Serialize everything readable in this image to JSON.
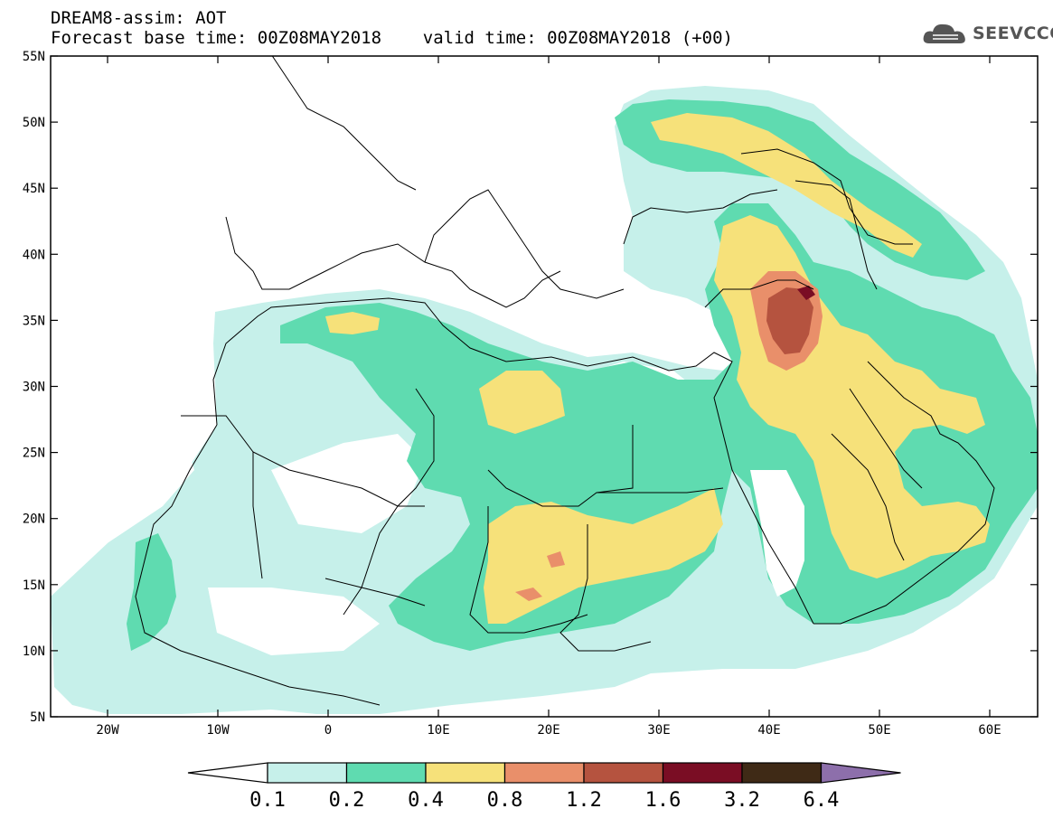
{
  "header": {
    "title_line1": "DREAM8-assim: AOT",
    "title_line2": "Forecast base time: 00Z08MAY2018    valid time: 00Z08MAY2018 (+00)"
  },
  "logo": {
    "text": "SEEVCCC",
    "icon": "cloud-icon"
  },
  "map": {
    "lat_labels": [
      "55N",
      "50N",
      "45N",
      "40N",
      "35N",
      "30N",
      "25N",
      "20N",
      "15N",
      "10N",
      "5N"
    ],
    "lon_labels": [
      "20W",
      "10W",
      "0",
      "10E",
      "20E",
      "30E",
      "40E",
      "50E",
      "60E"
    ]
  },
  "colorbar": {
    "labels": [
      "0.1",
      "0.2",
      "0.4",
      "0.8",
      "1.2",
      "1.6",
      "3.2",
      "6.4"
    ],
    "colors": [
      "#c6f0ea",
      "#5fdbb0",
      "#f6e17a",
      "#e98f6a",
      "#b5533f",
      "#7a0d24",
      "#3f2a16",
      "#8d6fab"
    ]
  }
}
